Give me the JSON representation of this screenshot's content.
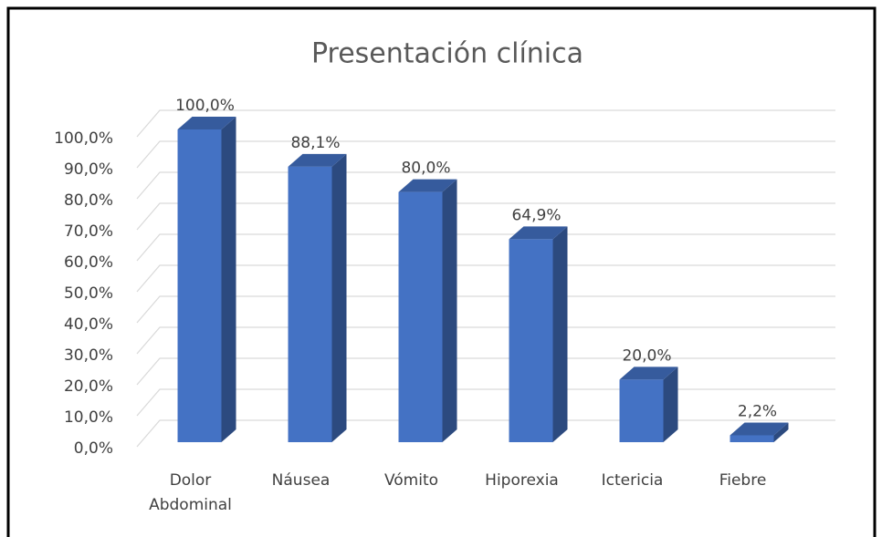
{
  "chart_data": {
    "type": "bar3d",
    "title": "Presentación clínica",
    "categories": [
      "Dolor Abdominal",
      "Náusea",
      "Vómito",
      "Hiporexia",
      "Ictericia",
      "Fiebre"
    ],
    "values": [
      100,
      88.1,
      80,
      64.9,
      20,
      2.2
    ],
    "value_labels": [
      "100,0%",
      "88,1%",
      "80,0%",
      "64,9%",
      "20,0%",
      "2,2%"
    ],
    "color": "#4472c4",
    "ylim": [
      0,
      100
    ],
    "yticks": [
      {
        "value": 0,
        "label": "0,0%"
      },
      {
        "value": 10,
        "label": "10,0%"
      },
      {
        "value": 20,
        "label": "20,0%"
      },
      {
        "value": 30,
        "label": "30,0%"
      },
      {
        "value": 40,
        "label": "40,0%"
      },
      {
        "value": 50,
        "label": "50,0%"
      },
      {
        "value": 60,
        "label": "60,0%"
      },
      {
        "value": 70,
        "label": "70,0%"
      },
      {
        "value": 80,
        "label": "80,0%"
      },
      {
        "value": 90,
        "label": "90,0%"
      },
      {
        "value": 100,
        "label": "100,0%"
      }
    ],
    "grid": true
  }
}
